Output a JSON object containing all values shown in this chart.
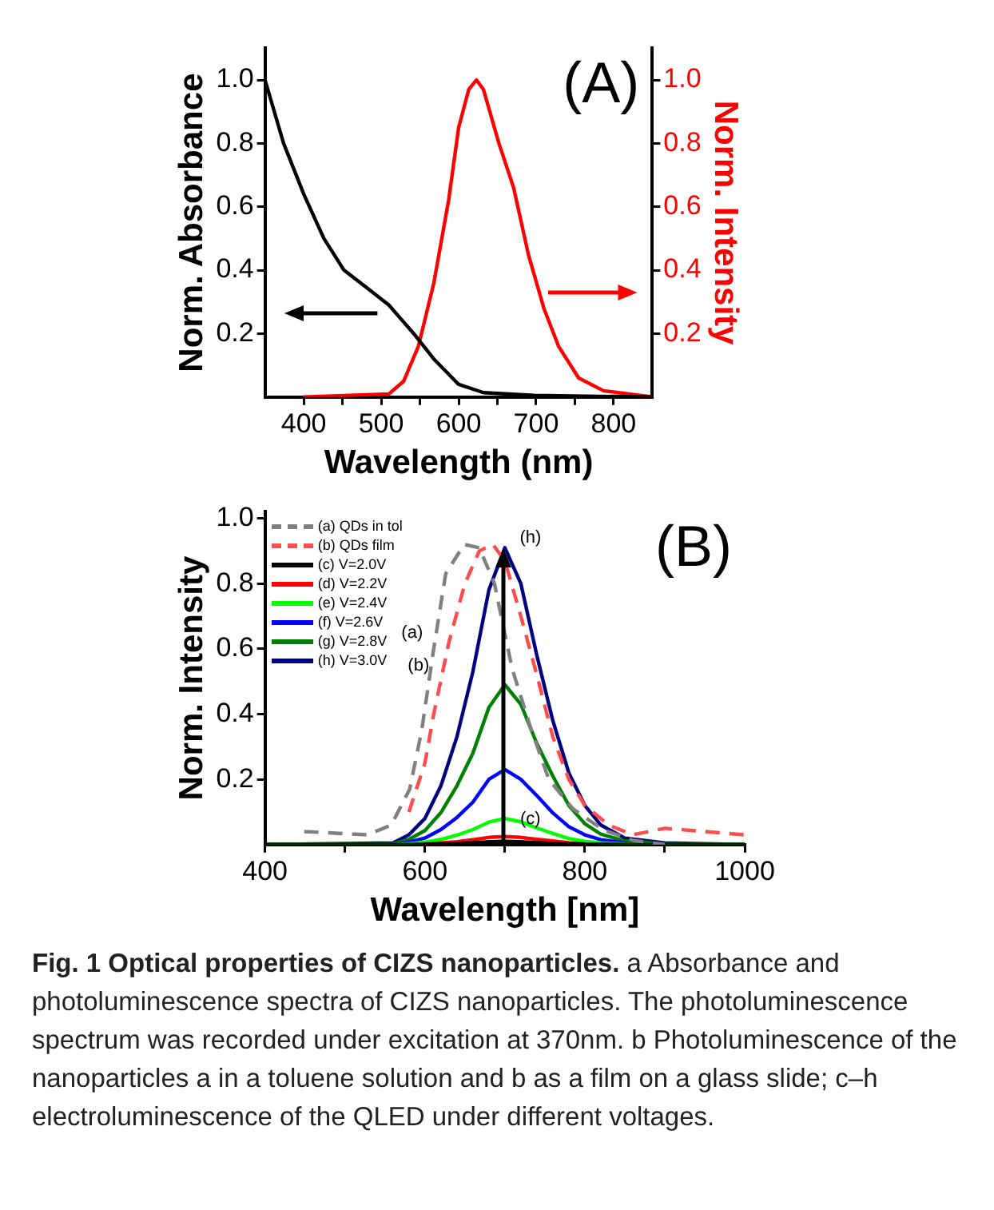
{
  "chart_data": [
    {
      "type": "line",
      "xlabel": "Wavelength (nm)",
      "ylabel": "Norm. Absorbance",
      "y2label": "Norm. Intensity",
      "xlim": [
        350,
        850
      ],
      "xticks": [
        400,
        {
          "value": 450,
          "label": null
        },
        500,
        {
          "value": 550,
          "label": null
        },
        600,
        {
          "value": 650,
          "label": null
        },
        700,
        {
          "value": 750,
          "label": null
        },
        800
      ],
      "ylim": [
        0,
        1.1
      ],
      "yticks": [
        0.2,
        0.4,
        0.6,
        0.8,
        {
          "value": 1,
          "label": "1.0"
        }
      ],
      "y2lim": [
        0,
        1.1
      ],
      "y2ticks": [
        0.2,
        0.4,
        0.6,
        0.8,
        {
          "value": 1,
          "label": "1.0"
        }
      ],
      "annotations": [
        "(A)"
      ],
      "series": [
        {
          "color": "#000000",
          "x": [
            350,
            374,
            400,
            426,
            452,
            484,
            510,
            542,
            568,
            600,
            632,
            697,
            850
          ],
          "values": [
            1.0,
            0.8,
            0.64,
            0.5,
            0.4,
            0.34,
            0.29,
            0.2,
            0.12,
            0.04,
            0.014,
            0.005,
            0
          ]
        },
        {
          "color": "#ff0000",
          "axis": "y2",
          "x": [
            400,
            510,
            529,
            548,
            568,
            587,
            600,
            613,
            623,
            632,
            652,
            671,
            690,
            710,
            729,
            755,
            787,
            850
          ],
          "values": [
            0,
            0.01,
            0.05,
            0.16,
            0.36,
            0.62,
            0.85,
            0.97,
            1.0,
            0.97,
            0.8,
            0.66,
            0.45,
            0.28,
            0.16,
            0.06,
            0.02,
            0
          ]
        }
      ]
    },
    {
      "type": "line",
      "xlabel": "Wavelength [nm]",
      "ylabel": "Norm. Intensity",
      "legend": "top left",
      "xlim": [
        400,
        1000
      ],
      "xticks": [
        400,
        {
          "value": 500,
          "label": null
        },
        600,
        {
          "value": 700,
          "label": null
        },
        800,
        {
          "value": 900,
          "label": null
        },
        1000
      ],
      "ylim": [
        0,
        1.02
      ],
      "yticks": [
        0.2,
        0.4,
        0.6,
        0.8,
        {
          "value": 1,
          "label": "1.0"
        }
      ],
      "x": [
        400,
        560,
        580,
        600,
        620,
        640,
        660,
        680,
        700,
        720,
        740,
        760,
        780,
        800,
        820,
        850,
        900,
        1000
      ],
      "annotations": [
        "(B)",
        {
          "text": "(a)",
          "x": 612,
          "y": 0.62
        },
        {
          "text": "(b)",
          "x": 620,
          "y": 0.52
        },
        {
          "text": "(c)",
          "x": 700,
          "y": 0.01
        },
        {
          "text": "(h)",
          "x": 700,
          "y": 0.91
        },
        "Fig. 1 Optical properties of CIZS nanoparticles.",
        "a Absorbance and photoluminescence spectra of CIZS nanoparticles. The photoluminescence spectrum was recorded under excitation at 370nm. b Photoluminescence of the nanoparticles a in a toluene solution and b as a film on a glass slide; c–h electroluminescence of the QLED under different voltages."
      ],
      "series": [
        {
          "name": "(a) QDs in tol",
          "color": "#808080",
          "line_style": "dashed",
          "x": [
            449,
            528,
            558,
            581,
            596,
            611,
            626,
            649,
            668,
            687,
            709,
            732,
            755,
            785,
            823,
            860,
            900
          ],
          "values": [
            0.04,
            0.03,
            0.06,
            0.17,
            0.35,
            0.6,
            0.83,
            0.92,
            0.91,
            0.8,
            0.54,
            0.36,
            0.2,
            0.11,
            0.045,
            0.013,
            0
          ]
        },
        {
          "name": "(b) QDs film",
          "color": "#ff4d4d",
          "line_style": "dashed",
          "x": [
            580,
            600,
            611,
            630,
            650,
            668,
            685,
            700,
            720,
            740,
            760,
            780,
            800,
            830,
            860,
            900,
            950,
            1000
          ],
          "values": [
            0.1,
            0.25,
            0.4,
            0.62,
            0.8,
            0.9,
            0.92,
            0.87,
            0.7,
            0.52,
            0.33,
            0.2,
            0.12,
            0.06,
            0.03,
            0.05,
            0.04,
            0.03
          ]
        },
        {
          "name": "(c) V=2.0V",
          "color": "#000000",
          "values": [
            0,
            0,
            0,
            0.001,
            0.002,
            0.004,
            0.006,
            0.009,
            0.01,
            0.009,
            0.006,
            0.004,
            0.002,
            0.001,
            0.001,
            0,
            0,
            0
          ]
        },
        {
          "name": "(d) V=2.2V",
          "color": "#ff0000",
          "values": [
            null,
            null,
            null,
            0.002,
            0.005,
            0.009,
            0.015,
            0.022,
            0.025,
            0.022,
            0.016,
            0.011,
            0.006,
            0.003,
            null,
            null,
            null,
            null
          ]
        },
        {
          "name": "(e) V=2.4V",
          "color": "#00ff00",
          "values": [
            0,
            0,
            0.003,
            0.007,
            0.016,
            0.029,
            0.046,
            0.069,
            0.08,
            0.07,
            0.051,
            0.034,
            0.019,
            0.01,
            0.005,
            0.002,
            0,
            0
          ]
        },
        {
          "name": "(f) V=2.6V",
          "color": "#0000ff",
          "values": [
            0,
            0.001,
            0.008,
            0.02,
            0.046,
            0.083,
            0.13,
            0.2,
            0.23,
            0.2,
            0.15,
            0.097,
            0.055,
            0.03,
            0.015,
            0.005,
            0.001,
            0
          ]
        },
        {
          "name": "(g) V=2.8V",
          "color": "#008000",
          "values": [
            0,
            0.002,
            0.016,
            0.043,
            0.098,
            0.18,
            0.28,
            0.42,
            0.49,
            0.43,
            0.31,
            0.21,
            0.12,
            0.064,
            0.032,
            0.011,
            0.002,
            0
          ]
        },
        {
          "name": "(h) V=3.0V",
          "color": "#000080",
          "values": [
            0,
            0.005,
            0.03,
            0.08,
            0.18,
            0.33,
            0.53,
            0.78,
            0.91,
            0.8,
            0.58,
            0.38,
            0.22,
            0.12,
            0.06,
            0.02,
            0.005,
            0
          ]
        }
      ]
    }
  ]
}
